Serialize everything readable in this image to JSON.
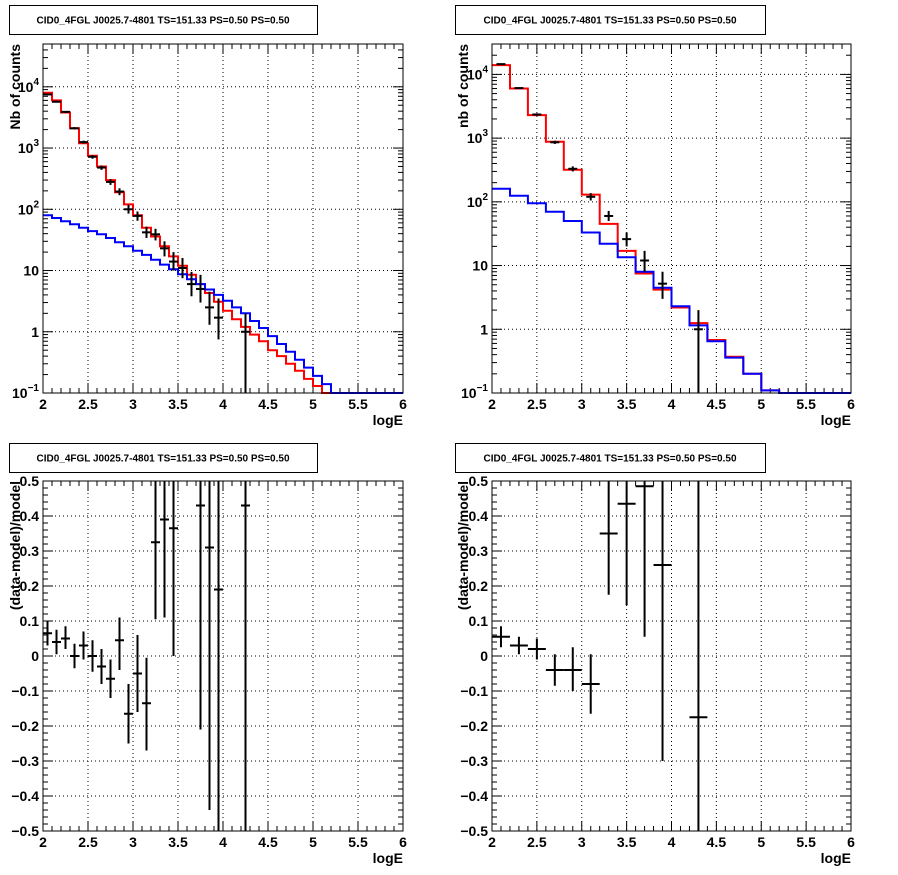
{
  "chart_data": [
    {
      "id": "top-left",
      "type": "line",
      "title": "CID0_4FGL J0025.7-4801 TS=151.33 PS=0.50 PS=0.50",
      "xlabel": "logE",
      "ylabel": "Nb of counts",
      "xlim": [
        2,
        6
      ],
      "ylim": [
        0.1,
        50000
      ],
      "log_y": true,
      "grid": true,
      "x_ticks": [
        "2",
        "2.5",
        "3",
        "3.5",
        "4",
        "4.5",
        "5",
        "5.5",
        "6"
      ],
      "y_ticks": [
        {
          "v": 0.1,
          "label": "10",
          "sup": "−1"
        },
        {
          "v": 1,
          "label": "1",
          "sup": ""
        },
        {
          "v": 10,
          "label": "10",
          "sup": ""
        },
        {
          "v": 100,
          "label": "10",
          "sup": "2"
        },
        {
          "v": 1000,
          "label": "10",
          "sup": "3"
        },
        {
          "v": 10000,
          "label": "10",
          "sup": "4"
        }
      ],
      "series": [
        {
          "color": "#ff0000",
          "kind": "step",
          "bin_width": 0.1,
          "bin_start": 2.0,
          "values": [
            8000,
            6000,
            3800,
            2100,
            1200,
            750,
            500,
            300,
            190,
            120,
            80,
            50,
            36,
            25,
            17,
            12,
            8.5,
            6,
            4.3,
            3.1,
            2.2,
            1.6,
            1.2,
            0.9,
            0.7,
            0.5,
            0.4,
            0.3,
            0.23,
            0.17,
            0.13,
            0.1,
            0.1,
            0.1,
            0.1,
            0.1,
            0.1,
            0.1,
            0.1,
            0.1
          ]
        },
        {
          "color": "#0000ff",
          "kind": "step",
          "bin_width": 0.1,
          "bin_start": 2.0,
          "values": [
            80,
            72,
            64,
            57,
            50,
            44,
            39,
            34,
            29,
            25,
            21,
            18,
            15,
            12.5,
            10.5,
            8.7,
            7.2,
            6,
            4.9,
            4,
            3.2,
            2.5,
            2,
            1.5,
            1.15,
            0.85,
            0.63,
            0.47,
            0.35,
            0.26,
            0.19,
            0.14,
            0.1,
            0.1,
            0.1,
            0.1,
            0.1,
            0.1,
            0.1,
            0.1
          ]
        },
        {
          "color": "#000000",
          "kind": "points",
          "points": [
            {
              "x": 2.05,
              "y": 7500,
              "lo": 7300,
              "hi": 7700
            },
            {
              "x": 2.15,
              "y": 5700,
              "lo": 5550,
              "hi": 5850
            },
            {
              "x": 2.25,
              "y": 3900,
              "lo": 3780,
              "hi": 4020
            },
            {
              "x": 2.35,
              "y": 2100,
              "lo": 2010,
              "hi": 2190
            },
            {
              "x": 2.45,
              "y": 1250,
              "lo": 1180,
              "hi": 1320
            },
            {
              "x": 2.55,
              "y": 720,
              "lo": 670,
              "hi": 770
            },
            {
              "x": 2.65,
              "y": 480,
              "lo": 440,
              "hi": 520
            },
            {
              "x": 2.75,
              "y": 280,
              "lo": 250,
              "hi": 310
            },
            {
              "x": 2.85,
              "y": 195,
              "lo": 170,
              "hi": 220
            },
            {
              "x": 2.95,
              "y": 100,
              "lo": 85,
              "hi": 118
            },
            {
              "x": 3.05,
              "y": 78,
              "lo": 65,
              "hi": 92
            },
            {
              "x": 3.15,
              "y": 42,
              "lo": 34,
              "hi": 52
            },
            {
              "x": 3.25,
              "y": 39,
              "lo": 31,
              "hi": 48
            },
            {
              "x": 3.35,
              "y": 23,
              "lo": 17,
              "hi": 30
            },
            {
              "x": 3.45,
              "y": 14,
              "lo": 10,
              "hi": 20
            },
            {
              "x": 3.55,
              "y": 11,
              "lo": 7.5,
              "hi": 16
            },
            {
              "x": 3.65,
              "y": 6,
              "lo": 3.8,
              "hi": 9.5
            },
            {
              "x": 3.75,
              "y": 5,
              "lo": 3,
              "hi": 8.5
            },
            {
              "x": 3.85,
              "y": 2.5,
              "lo": 1.3,
              "hi": 4.5
            },
            {
              "x": 3.95,
              "y": 1.7,
              "lo": 0.75,
              "hi": 3.5
            },
            {
              "x": 4.25,
              "y": 1,
              "lo": 0.1,
              "hi": 2
            }
          ]
        }
      ]
    },
    {
      "id": "top-right",
      "type": "line",
      "title": "CID0_4FGL J0025.7-4801 TS=151.33 PS=0.50 PS=0.50",
      "xlabel": "logE",
      "ylabel": "nb of counts",
      "xlim": [
        2,
        6
      ],
      "ylim": [
        0.1,
        30000
      ],
      "log_y": true,
      "grid": true,
      "x_ticks": [
        "2",
        "2.5",
        "3",
        "3.5",
        "4",
        "4.5",
        "5",
        "5.5",
        "6"
      ],
      "y_ticks": [
        {
          "v": 0.1,
          "label": "10",
          "sup": "−1"
        },
        {
          "v": 1,
          "label": "1",
          "sup": ""
        },
        {
          "v": 10,
          "label": "10",
          "sup": ""
        },
        {
          "v": 100,
          "label": "10",
          "sup": "2"
        },
        {
          "v": 1000,
          "label": "10",
          "sup": "3"
        },
        {
          "v": 10000,
          "label": "10",
          "sup": "4"
        }
      ],
      "series": [
        {
          "color": "#ff0000",
          "kind": "step",
          "bin_width": 0.2,
          "bin_start": 2.0,
          "values": [
            14000,
            6000,
            2300,
            880,
            320,
            130,
            45,
            17,
            7.5,
            4.2,
            2.2,
            1.25,
            0.68,
            0.37,
            0.2,
            0.11,
            0.1,
            0.1,
            0.1,
            0.1
          ]
        },
        {
          "color": "#0000ff",
          "kind": "step",
          "bin_width": 0.2,
          "bin_start": 2.0,
          "values": [
            160,
            125,
            95,
            70,
            50,
            33,
            22,
            13.5,
            8,
            4.5,
            2.3,
            1.15,
            0.65,
            0.36,
            0.2,
            0.11,
            0.1,
            0.1,
            0.1,
            0.1
          ]
        },
        {
          "color": "#000000",
          "kind": "points",
          "points": [
            {
              "x": 2.1,
              "y": 14500,
              "lo": 14300,
              "hi": 14700
            },
            {
              "x": 2.3,
              "y": 6100,
              "lo": 5950,
              "hi": 6250
            },
            {
              "x": 2.5,
              "y": 2350,
              "lo": 2250,
              "hi": 2450
            },
            {
              "x": 2.7,
              "y": 860,
              "lo": 810,
              "hi": 910
            },
            {
              "x": 2.9,
              "y": 330,
              "lo": 300,
              "hi": 360
            },
            {
              "x": 3.1,
              "y": 120,
              "lo": 105,
              "hi": 137
            },
            {
              "x": 3.3,
              "y": 60,
              "lo": 50,
              "hi": 72
            },
            {
              "x": 3.5,
              "y": 26,
              "lo": 20,
              "hi": 33
            },
            {
              "x": 3.7,
              "y": 12,
              "lo": 8,
              "hi": 17
            },
            {
              "x": 3.9,
              "y": 5.2,
              "lo": 3,
              "hi": 8
            },
            {
              "x": 4.3,
              "y": 1,
              "lo": 0.1,
              "hi": 2
            }
          ]
        }
      ]
    },
    {
      "id": "bottom-left",
      "type": "scatter",
      "title": "CID0_4FGL J0025.7-4801 TS=151.33 PS=0.50 PS=0.50",
      "xlabel": "logE",
      "ylabel": "(data-model)/model",
      "xlim": [
        2,
        6
      ],
      "ylim": [
        -0.5,
        0.5
      ],
      "log_y": false,
      "grid": true,
      "x_ticks": [
        "2",
        "2.5",
        "3",
        "3.5",
        "4",
        "4.5",
        "5",
        "5.5",
        "6"
      ],
      "y_ticks": [
        {
          "v": -0.5,
          "label": "−0.5",
          "sup": ""
        },
        {
          "v": -0.4,
          "label": "−0.4",
          "sup": ""
        },
        {
          "v": -0.3,
          "label": "−0.3",
          "sup": ""
        },
        {
          "v": -0.2,
          "label": "−0.2",
          "sup": ""
        },
        {
          "v": -0.1,
          "label": "−0.1",
          "sup": ""
        },
        {
          "v": 0,
          "label": "0",
          "sup": ""
        },
        {
          "v": 0.1,
          "label": "0.1",
          "sup": ""
        },
        {
          "v": 0.2,
          "label": "0.2",
          "sup": ""
        },
        {
          "v": 0.3,
          "label": "0.3",
          "sup": ""
        },
        {
          "v": 0.4,
          "label": "0.4",
          "sup": ""
        },
        {
          "v": 0.5,
          "label": "0.5",
          "sup": ""
        }
      ],
      "series": [
        {
          "color": "#000000",
          "kind": "points",
          "bin_half": 0.05,
          "points": [
            {
              "x": 2.05,
              "y": 0.065,
              "lo": 0.03,
              "hi": 0.1
            },
            {
              "x": 2.15,
              "y": 0.04,
              "lo": 0.005,
              "hi": 0.075
            },
            {
              "x": 2.25,
              "y": 0.05,
              "lo": 0.02,
              "hi": 0.085
            },
            {
              "x": 2.35,
              "y": 0.0,
              "lo": -0.035,
              "hi": 0.035
            },
            {
              "x": 2.45,
              "y": 0.03,
              "lo": -0.01,
              "hi": 0.07
            },
            {
              "x": 2.55,
              "y": 0.0,
              "lo": -0.045,
              "hi": 0.045
            },
            {
              "x": 2.65,
              "y": -0.03,
              "lo": -0.08,
              "hi": 0.02
            },
            {
              "x": 2.75,
              "y": -0.065,
              "lo": -0.12,
              "hi": -0.01
            },
            {
              "x": 2.85,
              "y": 0.045,
              "lo": -0.04,
              "hi": 0.11
            },
            {
              "x": 2.95,
              "y": -0.165,
              "lo": -0.25,
              "hi": -0.08
            },
            {
              "x": 3.05,
              "y": -0.05,
              "lo": -0.16,
              "hi": 0.06
            },
            {
              "x": 3.15,
              "y": -0.135,
              "lo": -0.27,
              "hi": -0.005
            },
            {
              "x": 3.25,
              "y": 0.325,
              "lo": 0.105,
              "hi": 0.5
            },
            {
              "x": 3.35,
              "y": 0.39,
              "lo": 0.11,
              "hi": 0.5
            },
            {
              "x": 3.45,
              "y": 0.365,
              "lo": 0.0,
              "hi": 0.5
            },
            {
              "x": 3.75,
              "y": 0.43,
              "lo": -0.21,
              "hi": 0.5
            },
            {
              "x": 3.85,
              "y": 0.31,
              "lo": -0.44,
              "hi": 0.5
            },
            {
              "x": 3.95,
              "y": 0.19,
              "lo": -0.5,
              "hi": 0.5
            },
            {
              "x": 4.25,
              "y": 0.43,
              "lo": -0.5,
              "hi": 0.5
            }
          ]
        }
      ]
    },
    {
      "id": "bottom-right",
      "type": "scatter",
      "title": "CID0_4FGL J0025.7-4801 TS=151.33 PS=0.50 PS=0.50",
      "xlabel": "logE",
      "ylabel": "(data-model)/model",
      "xlim": [
        2,
        6
      ],
      "ylim": [
        -0.5,
        0.5
      ],
      "log_y": false,
      "grid": true,
      "x_ticks": [
        "2",
        "2.5",
        "3",
        "3.5",
        "4",
        "4.5",
        "5",
        "5.5",
        "6"
      ],
      "y_ticks": [
        {
          "v": -0.5,
          "label": "−0.5",
          "sup": ""
        },
        {
          "v": -0.4,
          "label": "−0.4",
          "sup": ""
        },
        {
          "v": -0.3,
          "label": "−0.3",
          "sup": ""
        },
        {
          "v": -0.2,
          "label": "−0.2",
          "sup": ""
        },
        {
          "v": -0.1,
          "label": "−0.1",
          "sup": ""
        },
        {
          "v": 0,
          "label": "0",
          "sup": ""
        },
        {
          "v": 0.1,
          "label": "0.1",
          "sup": ""
        },
        {
          "v": 0.2,
          "label": "0.2",
          "sup": ""
        },
        {
          "v": 0.3,
          "label": "0.3",
          "sup": ""
        },
        {
          "v": 0.4,
          "label": "0.4",
          "sup": ""
        },
        {
          "v": 0.5,
          "label": "0.5",
          "sup": ""
        }
      ],
      "series": [
        {
          "color": "#000000",
          "kind": "points",
          "bin_half": 0.1,
          "points": [
            {
              "x": 2.1,
              "y": 0.055,
              "lo": 0.025,
              "hi": 0.085
            },
            {
              "x": 2.3,
              "y": 0.03,
              "lo": 0.005,
              "hi": 0.055
            },
            {
              "x": 2.5,
              "y": 0.02,
              "lo": -0.01,
              "hi": 0.05
            },
            {
              "x": 2.7,
              "y": -0.04,
              "lo": -0.085,
              "hi": 0.005
            },
            {
              "x": 2.9,
              "y": -0.04,
              "lo": -0.1,
              "hi": 0.025
            },
            {
              "x": 3.1,
              "y": -0.08,
              "lo": -0.165,
              "hi": 0.005
            },
            {
              "x": 3.3,
              "y": 0.35,
              "lo": 0.175,
              "hi": 0.5
            },
            {
              "x": 3.5,
              "y": 0.435,
              "lo": 0.145,
              "hi": 0.5
            },
            {
              "x": 3.7,
              "y": 0.485,
              "lo": 0.055,
              "hi": 0.5
            },
            {
              "x": 3.9,
              "y": 0.26,
              "lo": -0.3,
              "hi": 0.5
            },
            {
              "x": 4.3,
              "y": -0.175,
              "lo": -0.5,
              "hi": 0.5
            }
          ]
        }
      ]
    }
  ]
}
